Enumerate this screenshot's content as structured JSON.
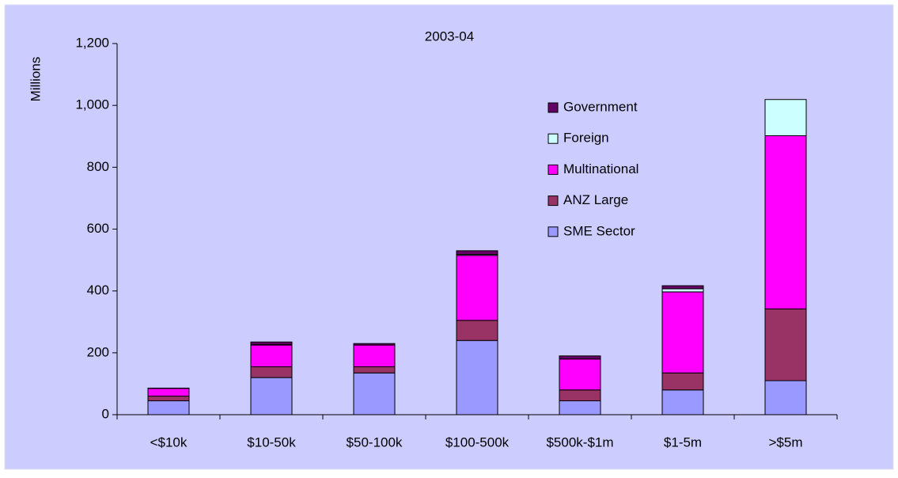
{
  "chart_data": {
    "type": "stacked_bar",
    "title": "2003-04",
    "y_label": "Millions",
    "categories": [
      "<$10k",
      "$10-50k",
      "$50-100k",
      "$100-500k",
      "$500k-$1m",
      "$1-5m",
      ">$5m"
    ],
    "series": [
      {
        "name": "SME Sector",
        "color": "#9999ff",
        "values": [
          45,
          120,
          135,
          240,
          45,
          80,
          110
        ]
      },
      {
        "name": "ANZ Large",
        "color": "#993366",
        "values": [
          15,
          35,
          20,
          65,
          35,
          55,
          232
        ]
      },
      {
        "name": "Multinational",
        "color": "#ff00ff",
        "values": [
          25,
          70,
          70,
          210,
          100,
          262,
          560
        ]
      },
      {
        "name": "Foreign",
        "color": "#ccffff",
        "values": [
          0,
          2,
          0,
          3,
          0,
          10,
          117
        ]
      },
      {
        "name": "Government",
        "color": "#660066",
        "values": [
          1,
          8,
          5,
          12,
          10,
          10,
          0
        ]
      }
    ],
    "ylim": [
      0,
      1200
    ],
    "yticks": [
      0,
      200,
      400,
      600,
      800,
      {
        "value": 1000,
        "label": "1,000"
      },
      {
        "value": 1200,
        "label": "1,200"
      }
    ]
  }
}
